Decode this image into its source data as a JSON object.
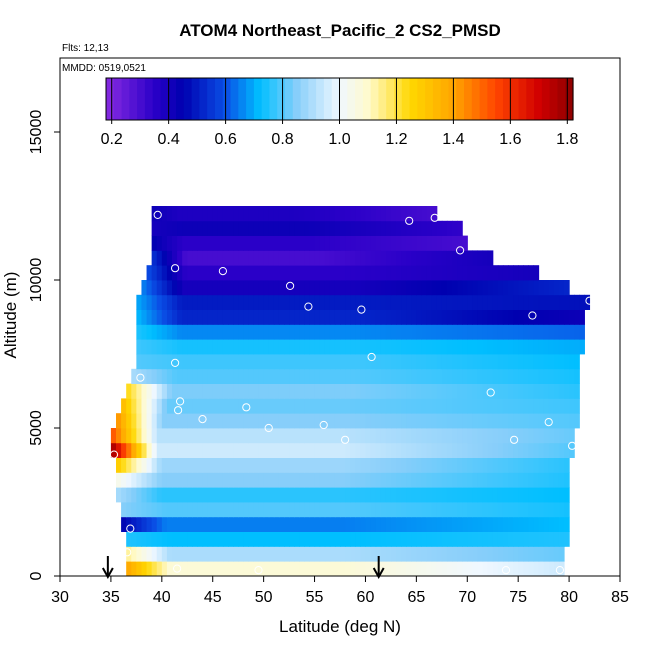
{
  "chart_data": {
    "type": "heatmap",
    "title": "ATOM4 Northeast_Pacific_2 CS2_PMSD",
    "annotations": [
      "Flts: 12,13",
      "MMDD: 0519,0521"
    ],
    "xlabel": "Latitude (deg N)",
    "ylabel": "Altitude (m)",
    "xlim": [
      30,
      85
    ],
    "ylim": [
      0,
      17500
    ],
    "x_ticks": [
      30,
      35,
      40,
      45,
      50,
      55,
      60,
      65,
      70,
      75,
      80,
      85
    ],
    "y_ticks": [
      0,
      5000,
      10000,
      15000
    ],
    "grid": false,
    "colorbar": {
      "placement": "inset-top",
      "range": [
        0.18,
        1.82
      ],
      "ticks": [
        "0.2",
        "0.4",
        "0.6",
        "0.8",
        "1.0",
        "1.2",
        "1.4",
        "1.6",
        "1.8"
      ],
      "tick_values": [
        0.2,
        0.4,
        0.6,
        0.8,
        1.0,
        1.2,
        1.4,
        1.6,
        1.8
      ],
      "stops": [
        {
          "v": 0.18,
          "c": "#8a2be2"
        },
        {
          "v": 0.35,
          "c": "#2a00c8"
        },
        {
          "v": 0.45,
          "c": "#0000b0"
        },
        {
          "v": 0.6,
          "c": "#0a50e6"
        },
        {
          "v": 0.72,
          "c": "#00bfff"
        },
        {
          "v": 0.85,
          "c": "#87cefa"
        },
        {
          "v": 1.0,
          "c": "#f0f8ff"
        },
        {
          "v": 1.1,
          "c": "#fffacd"
        },
        {
          "v": 1.25,
          "c": "#ffd700"
        },
        {
          "v": 1.4,
          "c": "#ffa500"
        },
        {
          "v": 1.55,
          "c": "#ff4500"
        },
        {
          "v": 1.7,
          "c": "#d10000"
        },
        {
          "v": 1.82,
          "c": "#8b0000"
        }
      ]
    },
    "field": {
      "altitude_bins_m": [
        0,
        500,
        1000,
        1500,
        2000,
        2500,
        3000,
        3500,
        4000,
        4500,
        5000,
        5500,
        6000,
        6500,
        7000,
        7500,
        8000,
        8500,
        9000,
        9500,
        10000,
        10500,
        11000,
        11500,
        12000,
        12500
      ],
      "rows": [
        {
          "alt": [
            0,
            500
          ],
          "x0": 36.5,
          "x1": 79.5,
          "v0": 1.4,
          "vmid": 1.08,
          "v1": 0.95
        },
        {
          "alt": [
            500,
            1000
          ],
          "x0": 36.5,
          "x1": 79.5,
          "v0": 1.15,
          "vmid": 0.9,
          "v1": 0.82
        },
        {
          "alt": [
            1000,
            1500
          ],
          "x0": 36.5,
          "x1": 80.0,
          "v0": 0.75,
          "vmid": 0.72,
          "v1": 0.75
        },
        {
          "alt": [
            1500,
            2000
          ],
          "x0": 36.0,
          "x1": 80.0,
          "v0": 0.45,
          "vmid": 0.65,
          "v1": 0.72
        },
        {
          "alt": [
            2000,
            2500
          ],
          "x0": 36.0,
          "x1": 80.0,
          "v0": 0.85,
          "vmid": 0.8,
          "v1": 0.74
        },
        {
          "alt": [
            2500,
            3000
          ],
          "x0": 35.5,
          "x1": 80.0,
          "v0": 0.9,
          "vmid": 0.76,
          "v1": 0.72
        },
        {
          "alt": [
            3000,
            3500
          ],
          "x0": 35.5,
          "x1": 80.0,
          "v0": 1.05,
          "vmid": 0.85,
          "v1": 0.75
        },
        {
          "alt": [
            3500,
            4000
          ],
          "x0": 35.5,
          "x1": 80.0,
          "v0": 1.3,
          "vmid": 0.88,
          "v1": 0.76
        },
        {
          "alt": [
            4000,
            4500
          ],
          "x0": 35.0,
          "x1": 80.5,
          "v0": 1.8,
          "vmid": 0.95,
          "v1": 0.8
        },
        {
          "alt": [
            4500,
            5000
          ],
          "x0": 35.0,
          "x1": 80.5,
          "v0": 1.55,
          "vmid": 0.92,
          "v1": 0.82
        },
        {
          "alt": [
            5000,
            5500
          ],
          "x0": 35.5,
          "x1": 81.0,
          "v0": 1.45,
          "vmid": 0.85,
          "v1": 0.8
        },
        {
          "alt": [
            5500,
            6000
          ],
          "x0": 36.0,
          "x1": 81.0,
          "v0": 1.35,
          "vmid": 0.82,
          "v1": 0.78
        },
        {
          "alt": [
            6000,
            6500
          ],
          "x0": 36.5,
          "x1": 81.0,
          "v0": 1.25,
          "vmid": 0.84,
          "v1": 0.76
        },
        {
          "alt": [
            6500,
            7000
          ],
          "x0": 37.0,
          "x1": 81.0,
          "v0": 0.9,
          "vmid": 0.8,
          "v1": 0.74
        },
        {
          "alt": [
            7000,
            7500
          ],
          "x0": 37.5,
          "x1": 81.0,
          "v0": 0.8,
          "vmid": 0.78,
          "v1": 0.72
        },
        {
          "alt": [
            7500,
            8000
          ],
          "x0": 37.5,
          "x1": 81.5,
          "v0": 0.78,
          "vmid": 0.74,
          "v1": 0.7
        },
        {
          "alt": [
            8000,
            8500
          ],
          "x0": 37.5,
          "x1": 81.5,
          "v0": 0.75,
          "vmid": 0.66,
          "v1": 0.62
        },
        {
          "alt": [
            8500,
            9000
          ],
          "x0": 37.5,
          "x1": 81.5,
          "v0": 0.72,
          "vmid": 0.52,
          "v1": 0.42
        },
        {
          "alt": [
            9000,
            9500
          ],
          "x0": 37.5,
          "x1": 82.0,
          "v0": 0.7,
          "vmid": 0.5,
          "v1": 0.48
        },
        {
          "alt": [
            9500,
            10000
          ],
          "x0": 38.0,
          "x1": 80.0,
          "v0": 0.66,
          "vmid": 0.4,
          "v1": 0.52
        },
        {
          "alt": [
            10000,
            10500
          ],
          "x0": 38.5,
          "x1": 77.0,
          "v0": 0.6,
          "vmid": 0.35,
          "v1": 0.4
        },
        {
          "alt": [
            10500,
            11000
          ],
          "x0": 39.0,
          "x1": 72.5,
          "v0": 0.55,
          "vmid": 0.3,
          "v1": 0.4
        },
        {
          "alt": [
            11000,
            11500
          ],
          "x0": 39.0,
          "x1": 70.0,
          "v0": 0.45,
          "vmid": 0.35,
          "v1": 0.3
        },
        {
          "alt": [
            11500,
            12000
          ],
          "x0": 39.0,
          "x1": 69.5,
          "v0": 0.4,
          "vmid": 0.42,
          "v1": 0.34
        },
        {
          "alt": [
            12000,
            12500
          ],
          "x0": 39.0,
          "x1": 67.0,
          "v0": 0.42,
          "vmid": 0.38,
          "v1": 0.3
        }
      ]
    },
    "sample_points": [
      {
        "x": 41.5,
        "y": 250
      },
      {
        "x": 49.5,
        "y": 200
      },
      {
        "x": 73.8,
        "y": 200
      },
      {
        "x": 79.1,
        "y": 200
      },
      {
        "x": 35.7,
        "y": 500
      },
      {
        "x": 36.6,
        "y": 800
      },
      {
        "x": 36.9,
        "y": 1600
      },
      {
        "x": 35.3,
        "y": 4100
      },
      {
        "x": 58.0,
        "y": 4600
      },
      {
        "x": 74.6,
        "y": 4600
      },
      {
        "x": 80.3,
        "y": 4400
      },
      {
        "x": 50.5,
        "y": 5000
      },
      {
        "x": 55.9,
        "y": 5100
      },
      {
        "x": 78.0,
        "y": 5200
      },
      {
        "x": 44.0,
        "y": 5300
      },
      {
        "x": 41.6,
        "y": 5600
      },
      {
        "x": 41.8,
        "y": 5900
      },
      {
        "x": 48.3,
        "y": 5700
      },
      {
        "x": 72.3,
        "y": 6200
      },
      {
        "x": 37.9,
        "y": 6700
      },
      {
        "x": 41.3,
        "y": 7200
      },
      {
        "x": 60.6,
        "y": 7400
      },
      {
        "x": 76.4,
        "y": 8800
      },
      {
        "x": 54.4,
        "y": 9100
      },
      {
        "x": 59.6,
        "y": 9000
      },
      {
        "x": 82.0,
        "y": 9300
      },
      {
        "x": 52.6,
        "y": 9800
      },
      {
        "x": 41.3,
        "y": 10400
      },
      {
        "x": 46.0,
        "y": 10300
      },
      {
        "x": 69.3,
        "y": 11000
      },
      {
        "x": 64.3,
        "y": 12000
      },
      {
        "x": 66.8,
        "y": 12100
      },
      {
        "x": 39.6,
        "y": 12200
      }
    ],
    "arrows_at_latitude": [
      34.7,
      61.3
    ]
  }
}
